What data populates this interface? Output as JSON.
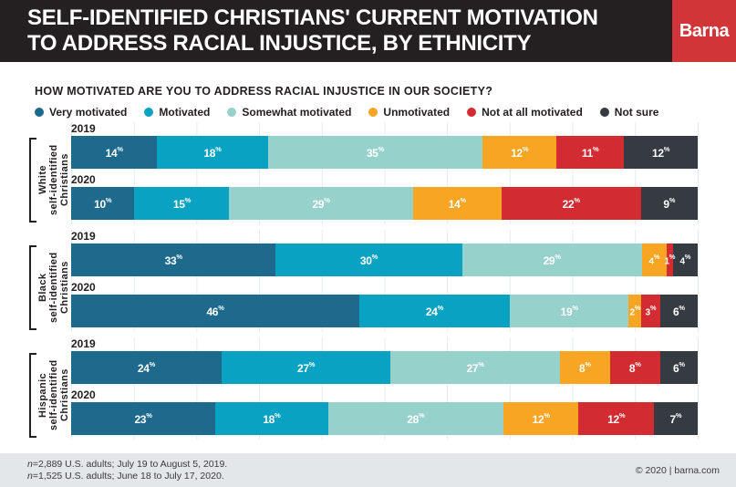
{
  "header": {
    "title_lines": [
      "SELF-IDENTIFIED CHRISTIANS' CURRENT MOTIVATION",
      "TO ADDRESS RACIAL INJUSTICE, BY ETHNICITY"
    ],
    "logo": "Barna",
    "logo_color": "#d13538",
    "background_color": "#242021"
  },
  "question": "HOW MOTIVATED ARE YOU TO ADDRESS RACIAL INJUSTICE IN OUR SOCIETY?",
  "chart_data": {
    "type": "bar",
    "variant": "horizontal-stacked",
    "unit": "%",
    "legend_position": "top",
    "grid": "vertical, every 10%",
    "series_labels": [
      "Very motivated",
      "Motivated",
      "Somewhat motivated",
      "Unmotivated",
      "Not at all motivated",
      "Not sure"
    ],
    "series_colors": [
      "#1e6a8c",
      "#0aa2c2",
      "#97d1cc",
      "#f7a522",
      "#d22b31",
      "#363b42"
    ],
    "groups": [
      {
        "label_lines": [
          "White",
          "self-identified",
          "Christians"
        ],
        "rows": [
          {
            "year": "2019",
            "values": [
              14,
              18,
              35,
              12,
              11,
              12
            ]
          },
          {
            "year": "2020",
            "values": [
              10,
              15,
              29,
              14,
              22,
              9
            ]
          }
        ]
      },
      {
        "label_lines": [
          "Black",
          "self-identified",
          "Christians"
        ],
        "rows": [
          {
            "year": "2019",
            "values": [
              33,
              30,
              29,
              4,
              1,
              4
            ]
          },
          {
            "year": "2020",
            "values": [
              46,
              24,
              19,
              2,
              3,
              6
            ]
          }
        ]
      },
      {
        "label_lines": [
          "Hispanic",
          "self-identified",
          "Christians"
        ],
        "rows": [
          {
            "year": "2019",
            "values": [
              24,
              27,
              27,
              8,
              8,
              6
            ]
          },
          {
            "year": "2020",
            "values": [
              23,
              18,
              28,
              12,
              12,
              7
            ]
          }
        ]
      }
    ]
  },
  "footer": {
    "notes": [
      "n=2,889 U.S. adults; July 19 to August 5, 2019.",
      "n=1,525 U.S. adults; June 18 to July 17, 2020."
    ],
    "credit": "© 2020 | barna.com"
  }
}
